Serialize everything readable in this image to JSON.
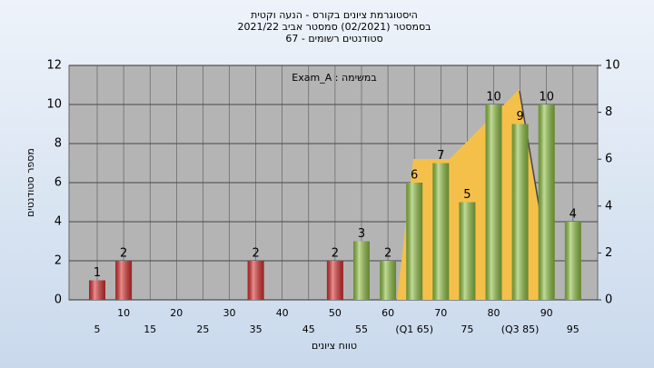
{
  "chart_data": {
    "type": "bar",
    "title": [
      "היסטוגרמת ציונים בקורס - הנעה וקטית",
      "בסמסטר  (02/2021)  סמסטר אביב 2021/22",
      "סטודנטים רשומים - 67"
    ],
    "annotation": "במשימה : Exam_A",
    "x_label": "טווח ציונים",
    "y_label": "מספר סטודנטים",
    "categories": [
      "5",
      "10",
      "15",
      "20",
      "25",
      "30",
      "35",
      "40",
      "45",
      "50",
      "55",
      "60",
      "(Q1 65)",
      "70",
      "75",
      "80",
      "(Q3 85)",
      "90",
      "95"
    ],
    "values": [
      1,
      2,
      0,
      0,
      0,
      0,
      2,
      0,
      0,
      2,
      3,
      2,
      6,
      7,
      5,
      10,
      9,
      10,
      4
    ],
    "value_labels": [
      "1",
      "2",
      null,
      null,
      null,
      null,
      "2",
      null,
      null,
      "2",
      "3",
      "2",
      "6",
      "7",
      "5",
      "10",
      "9",
      "10",
      "4"
    ],
    "colors": [
      "#d83030",
      "#d83030",
      "#d83030",
      "#d83030",
      "#d83030",
      "#d83030",
      "#d83030",
      "#d83030",
      "#d83030",
      "#d83030",
      "#8fc043",
      "#8fc043",
      "#8fc043",
      "#8fc043",
      "#8fc043",
      "#8fc043",
      "#8fc043",
      "#8fc043",
      "#8fc043"
    ],
    "ylim": [
      0,
      12
    ],
    "yticks": [
      0,
      2,
      4,
      6,
      8,
      10,
      12
    ],
    "y2lim": [
      0,
      10
    ],
    "y2ticks": [
      0,
      2,
      4,
      6,
      8,
      10
    ],
    "grid": true
  }
}
